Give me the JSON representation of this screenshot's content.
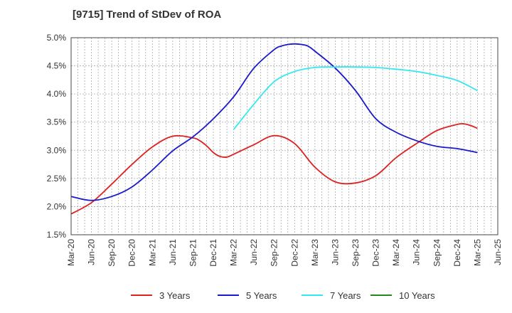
{
  "chart_data": {
    "type": "line",
    "title": "[9715]  Trend of StDev of ROA",
    "xlabel": "",
    "ylabel": "",
    "x_ticks": [
      "Mar-20",
      "Jun-20",
      "Sep-20",
      "Dec-20",
      "Mar-21",
      "Jun-21",
      "Sep-21",
      "Dec-21",
      "Mar-22",
      "Jun-22",
      "Sep-22",
      "Dec-22",
      "Mar-23",
      "Jun-23",
      "Sep-23",
      "Dec-23",
      "Mar-24",
      "Jun-24",
      "Sep-24",
      "Dec-24",
      "Mar-25",
      "Jun-25"
    ],
    "y_ticks": [
      "1.5%",
      "2.0%",
      "2.5%",
      "3.0%",
      "3.5%",
      "4.0%",
      "4.5%",
      "5.0%"
    ],
    "y_tick_values": [
      1.5,
      2.0,
      2.5,
      3.0,
      3.5,
      4.0,
      4.5,
      5.0
    ],
    "ylim": [
      1.5,
      5.0
    ],
    "grid": true,
    "legend_position": "bottom",
    "series": [
      {
        "name": "3 Years",
        "color": "#dd2222",
        "x": [
          "Mar-20",
          "Jun-20",
          "Sep-20",
          "Dec-20",
          "Mar-21",
          "Jun-21",
          "Sep-21",
          "Oct-21",
          "Nov-21",
          "Dec-21",
          "Jan-22",
          "Feb-22",
          "Mar-22",
          "Jun-22",
          "Sep-22",
          "Dec-22",
          "Mar-23",
          "Jun-23",
          "Sep-23",
          "Dec-23",
          "Mar-24",
          "Jun-24",
          "Sep-24",
          "Dec-24",
          "Jan-25",
          "Feb-25",
          "Mar-25"
        ],
        "values": [
          1.87,
          2.07,
          2.4,
          2.75,
          3.06,
          3.25,
          3.22,
          3.17,
          3.08,
          2.96,
          2.89,
          2.88,
          2.93,
          3.1,
          3.26,
          3.12,
          2.7,
          2.44,
          2.42,
          2.55,
          2.87,
          3.12,
          3.35,
          3.46,
          3.47,
          3.44,
          3.39
        ]
      },
      {
        "name": "5 Years",
        "color": "#1a1acc",
        "x": [
          "Mar-20",
          "Jun-20",
          "Sep-20",
          "Dec-20",
          "Mar-21",
          "Jun-21",
          "Sep-21",
          "Dec-21",
          "Mar-22",
          "Jun-22",
          "Sep-22",
          "Oct-22",
          "Nov-22",
          "Dec-22",
          "Jan-23",
          "Feb-23",
          "Mar-23",
          "Jun-23",
          "Sep-23",
          "Dec-23",
          "Mar-24",
          "Jun-24",
          "Sep-24",
          "Dec-24",
          "Mar-25"
        ],
        "values": [
          2.18,
          2.11,
          2.18,
          2.35,
          2.65,
          2.99,
          3.24,
          3.56,
          3.95,
          4.46,
          4.79,
          4.85,
          4.88,
          4.89,
          4.88,
          4.85,
          4.76,
          4.46,
          4.06,
          3.56,
          3.32,
          3.17,
          3.07,
          3.03,
          2.96
        ]
      },
      {
        "name": "7 Years",
        "color": "#33e8f0",
        "x": [
          "Mar-22",
          "Jun-22",
          "Sep-22",
          "Dec-22",
          "Mar-23",
          "Jun-23",
          "Sep-23",
          "Dec-23",
          "Mar-24",
          "Jun-24",
          "Sep-24",
          "Dec-24",
          "Mar-25"
        ],
        "values": [
          3.37,
          3.82,
          4.22,
          4.4,
          4.47,
          4.48,
          4.48,
          4.47,
          4.44,
          4.4,
          4.33,
          4.24,
          4.06
        ]
      },
      {
        "name": "10 Years",
        "color": "#228822",
        "x": [],
        "values": []
      }
    ]
  }
}
